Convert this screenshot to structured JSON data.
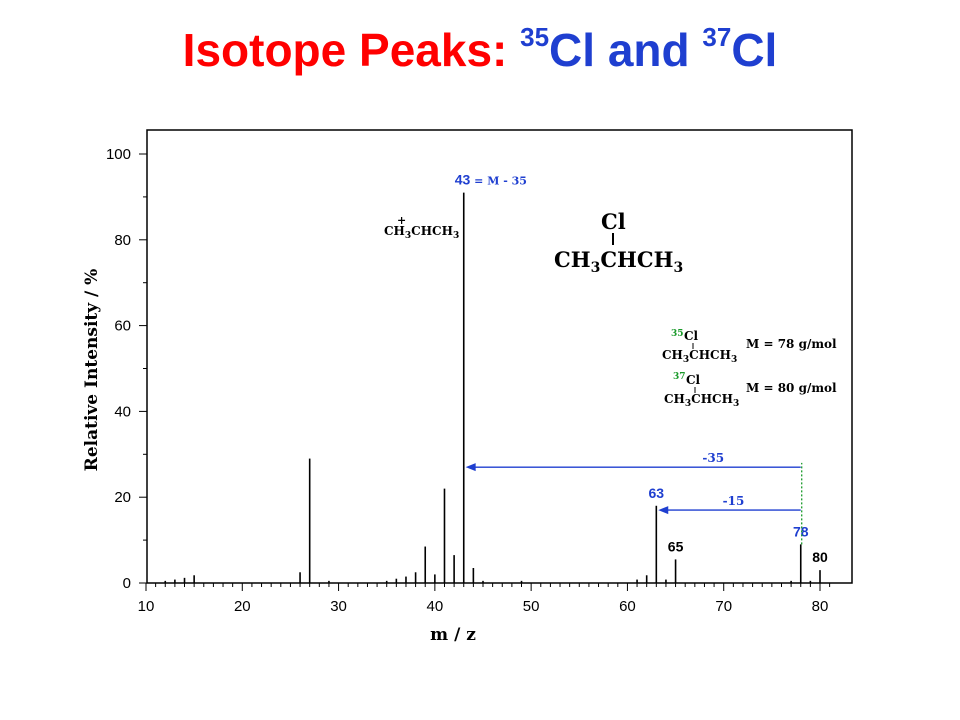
{
  "title": {
    "part1": "Isotope Peaks: ",
    "sup1": "35",
    "part2": "Cl and ",
    "sup2": "37",
    "part3": "Cl",
    "color_red": "#ff0000",
    "color_blue": "#1f3fd0"
  },
  "chart_data": {
    "type": "bar",
    "xlabel": "m / z",
    "ylabel": "Relative Intensity / %",
    "xlim": [
      10,
      82
    ],
    "ylim": [
      0,
      100
    ],
    "xticks": [
      10,
      20,
      30,
      40,
      50,
      60,
      70,
      80
    ],
    "yticks": [
      0,
      20,
      40,
      60,
      80,
      100
    ],
    "grid": false,
    "peaks": [
      {
        "mz": 12,
        "intensity": 0.5
      },
      {
        "mz": 13,
        "intensity": 0.8
      },
      {
        "mz": 14,
        "intensity": 1.2
      },
      {
        "mz": 15,
        "intensity": 1.8
      },
      {
        "mz": 26,
        "intensity": 2.5
      },
      {
        "mz": 27,
        "intensity": 29
      },
      {
        "mz": 29,
        "intensity": 0.5
      },
      {
        "mz": 35,
        "intensity": 0.5
      },
      {
        "mz": 36,
        "intensity": 1.0
      },
      {
        "mz": 37,
        "intensity": 1.5
      },
      {
        "mz": 38,
        "intensity": 2.5
      },
      {
        "mz": 39,
        "intensity": 8.5
      },
      {
        "mz": 40,
        "intensity": 2.0
      },
      {
        "mz": 41,
        "intensity": 22
      },
      {
        "mz": 42,
        "intensity": 6.5
      },
      {
        "mz": 43,
        "intensity": 91
      },
      {
        "mz": 44,
        "intensity": 3.5
      },
      {
        "mz": 45,
        "intensity": 0.5
      },
      {
        "mz": 49,
        "intensity": 0.5
      },
      {
        "mz": 61,
        "intensity": 0.8
      },
      {
        "mz": 62,
        "intensity": 1.8
      },
      {
        "mz": 63,
        "intensity": 18
      },
      {
        "mz": 64,
        "intensity": 0.8
      },
      {
        "mz": 65,
        "intensity": 5.5
      },
      {
        "mz": 77,
        "intensity": 0.5
      },
      {
        "mz": 78,
        "intensity": 9
      },
      {
        "mz": 79,
        "intensity": 0.5
      },
      {
        "mz": 80,
        "intensity": 3
      }
    ],
    "peak_labels": [
      {
        "mz": 43,
        "intensity": 91,
        "text_num": "43",
        "text_rest": " = M - 35",
        "color": "#1f3fd0"
      },
      {
        "mz": 63,
        "intensity": 18,
        "text_num": "63",
        "text_rest": "",
        "color": "#1f3fd0"
      },
      {
        "mz": 65,
        "intensity": 5.5,
        "text_num": "65",
        "text_rest": "",
        "color": "#000000"
      },
      {
        "mz": 78,
        "intensity": 9,
        "text_num": "78",
        "text_rest": "",
        "color": "#1f3fd0"
      },
      {
        "mz": 80,
        "intensity": 3,
        "text_num": "80",
        "text_rest": "",
        "color": "#000000"
      }
    ],
    "arrows": [
      {
        "from_mz": 78,
        "to_mz": 43.2,
        "level": 27,
        "label": "-35",
        "color": "#1f3fd0"
      },
      {
        "from_mz": 78,
        "to_mz": 63.2,
        "level": 17,
        "label": "-15",
        "color": "#1f3fd0"
      }
    ],
    "guide_line": {
      "mz": 78.1,
      "from": 9,
      "to": 28,
      "color": "#1a9a2a"
    },
    "annotations": {
      "fragment_main": "CH",
      "fragment_sub": "3",
      "fragment_rest": "CHCH",
      "fragment_sub2": "3",
      "fragment_charge": "+",
      "molecule_cl": "Cl",
      "molecule_ch": "CH",
      "molecule_sub": "3",
      "molecule_mid": "CHCH",
      "molecule_sub2": "3",
      "iso35_mass": "35",
      "iso37_mass": "37",
      "iso_cl": "Cl",
      "iso35_m": "M = 78 g/mol",
      "iso37_m": "M = 80 g/mol",
      "iso_color": "#1a9a2a"
    }
  }
}
